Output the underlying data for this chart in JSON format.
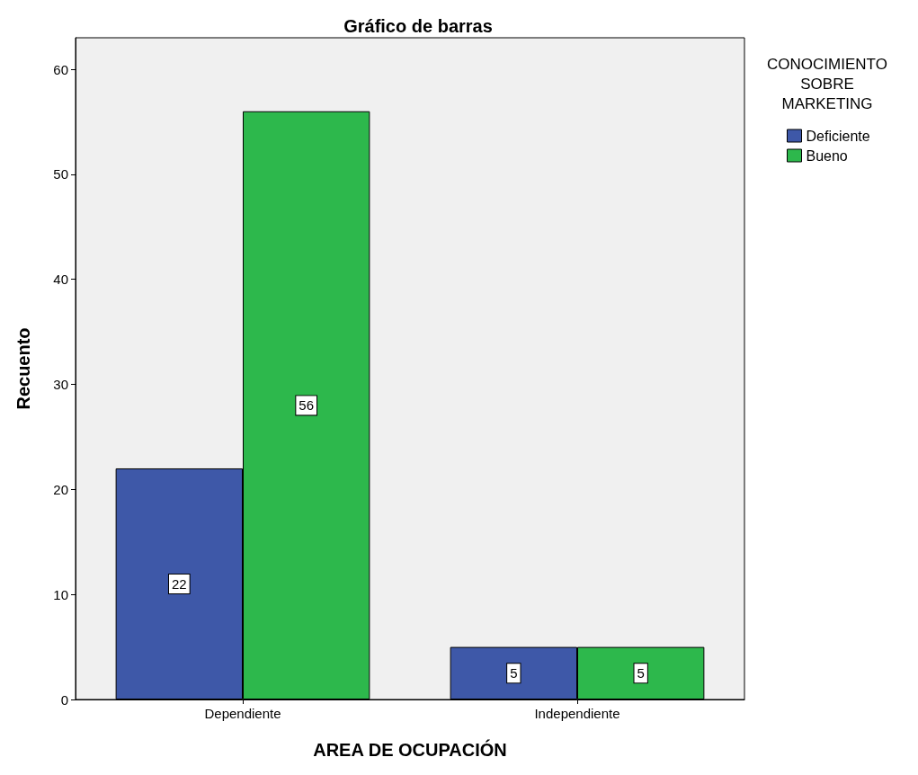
{
  "chart_data": {
    "type": "bar",
    "title": "Gráfico de barras",
    "xlabel": "AREA DE OCUPACIÓN",
    "ylabel": "Recuento",
    "legend_title": "CONOCIMIENTO SOBRE MARKETING",
    "categories": [
      "Dependiente",
      "Independiente"
    ],
    "series": [
      {
        "name": "Deficiente",
        "color": "#3e58a8",
        "values": [
          22,
          5
        ]
      },
      {
        "name": "Bueno",
        "color": "#2db84c",
        "values": [
          56,
          5
        ]
      }
    ],
    "ylim": [
      0,
      63
    ],
    "yticks": [
      0,
      10,
      20,
      30,
      40,
      50,
      60
    ],
    "grid": false,
    "legend": "top right",
    "data_labels": true
  }
}
